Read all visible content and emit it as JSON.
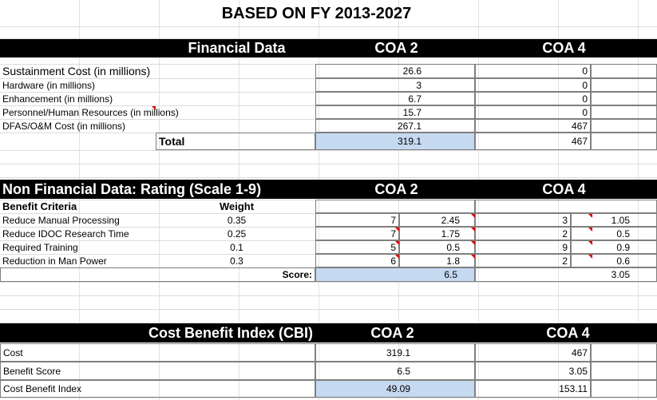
{
  "header": {
    "title": "BASED ON FY 2013-2027"
  },
  "financial": {
    "heading": "Financial Data",
    "columns": [
      "COA 2",
      "COA 4"
    ],
    "rows": [
      {
        "label": "Sustainment Cost (in millions)",
        "coa2": 26.6,
        "coa4": 0
      },
      {
        "label": "Hardware (in millions)",
        "coa2": 3,
        "coa4": 0
      },
      {
        "label": "Enhancement (in millions)",
        "coa2": 6.7,
        "coa4": 0
      },
      {
        "label": "Personnel/Human Resources (in millions)",
        "coa2": 15.7,
        "coa4": 0
      },
      {
        "label": "DFAS/O&M Cost (in millions)",
        "coa2": 267.1,
        "coa4": 467
      }
    ],
    "total": {
      "label": "Total",
      "coa2": 319.1,
      "coa4": 467
    }
  },
  "non_financial": {
    "heading": "Non Financial Data:  Rating (Scale 1-9)",
    "columns": [
      "COA 2",
      "COA 4"
    ],
    "criteria_header": "Benefit Criteria",
    "weight_header": "Weight",
    "rows": [
      {
        "label": "Reduce Manual Processing",
        "weight": 0.35,
        "coa2_rating": 7,
        "coa2_score": 2.45,
        "coa4_rating": 3,
        "coa4_score": 1.05
      },
      {
        "label": "Reduce IDOC Research Time",
        "weight": 0.25,
        "coa2_rating": 7,
        "coa2_score": 1.75,
        "coa4_rating": 2,
        "coa4_score": 0.5
      },
      {
        "label": "Required Training",
        "weight": 0.1,
        "coa2_rating": 5,
        "coa2_score": 0.5,
        "coa4_rating": 9,
        "coa4_score": 0.9
      },
      {
        "label": "Reduction in Man Power",
        "weight": 0.3,
        "coa2_rating": 6,
        "coa2_score": 1.8,
        "coa4_rating": 2,
        "coa4_score": 0.6
      }
    ],
    "score": {
      "label": "Score:",
      "coa2": 6.5,
      "coa4": 3.05
    }
  },
  "cbi": {
    "heading": "Cost Benefit Index (CBI)",
    "columns": [
      "COA 2",
      "COA 4"
    ],
    "rows": [
      {
        "label": "Cost",
        "coa2": 319.1,
        "coa4": 467
      },
      {
        "label": "Benefit Score",
        "coa2": 6.5,
        "coa4": 3.05
      },
      {
        "label": "Cost Benefit Index",
        "coa2": 49.09,
        "coa4": 153.11
      }
    ]
  }
}
